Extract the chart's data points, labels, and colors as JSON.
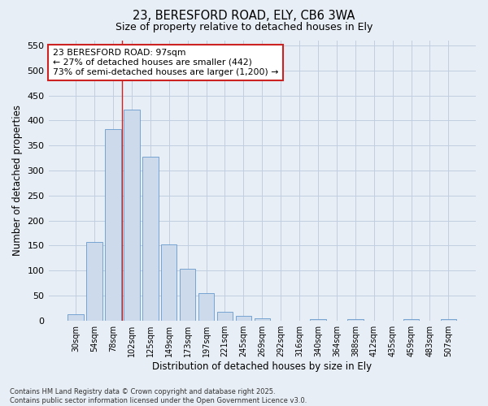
{
  "title_line1": "23, BERESFORD ROAD, ELY, CB6 3WA",
  "title_line2": "Size of property relative to detached houses in Ely",
  "xlabel": "Distribution of detached houses by size in Ely",
  "ylabel": "Number of detached properties",
  "categories": [
    "30sqm",
    "54sqm",
    "78sqm",
    "102sqm",
    "125sqm",
    "149sqm",
    "173sqm",
    "197sqm",
    "221sqm",
    "245sqm",
    "269sqm",
    "292sqm",
    "316sqm",
    "340sqm",
    "364sqm",
    "388sqm",
    "412sqm",
    "435sqm",
    "459sqm",
    "483sqm",
    "507sqm"
  ],
  "values": [
    12,
    157,
    383,
    422,
    328,
    153,
    103,
    55,
    18,
    10,
    5,
    0,
    0,
    3,
    0,
    2,
    0,
    0,
    2,
    0,
    2
  ],
  "bar_color": "#ccdaeb",
  "bar_edge_color": "#6699cc",
  "grid_color": "#c0cfe0",
  "vline_color": "#cc2222",
  "annotation_box_text": "23 BERESFORD ROAD: 97sqm\n← 27% of detached houses are smaller (442)\n73% of semi-detached houses are larger (1,200) →",
  "annotation_box_edgecolor": "#cc2222",
  "ylim": [
    0,
    560
  ],
  "yticks": [
    0,
    50,
    100,
    150,
    200,
    250,
    300,
    350,
    400,
    450,
    500,
    550
  ],
  "footer_line1": "Contains HM Land Registry data © Crown copyright and database right 2025.",
  "footer_line2": "Contains public sector information licensed under the Open Government Licence v3.0.",
  "background_color": "#e8eef5",
  "plot_background": "#e8eef5",
  "vline_bar_index": 3
}
